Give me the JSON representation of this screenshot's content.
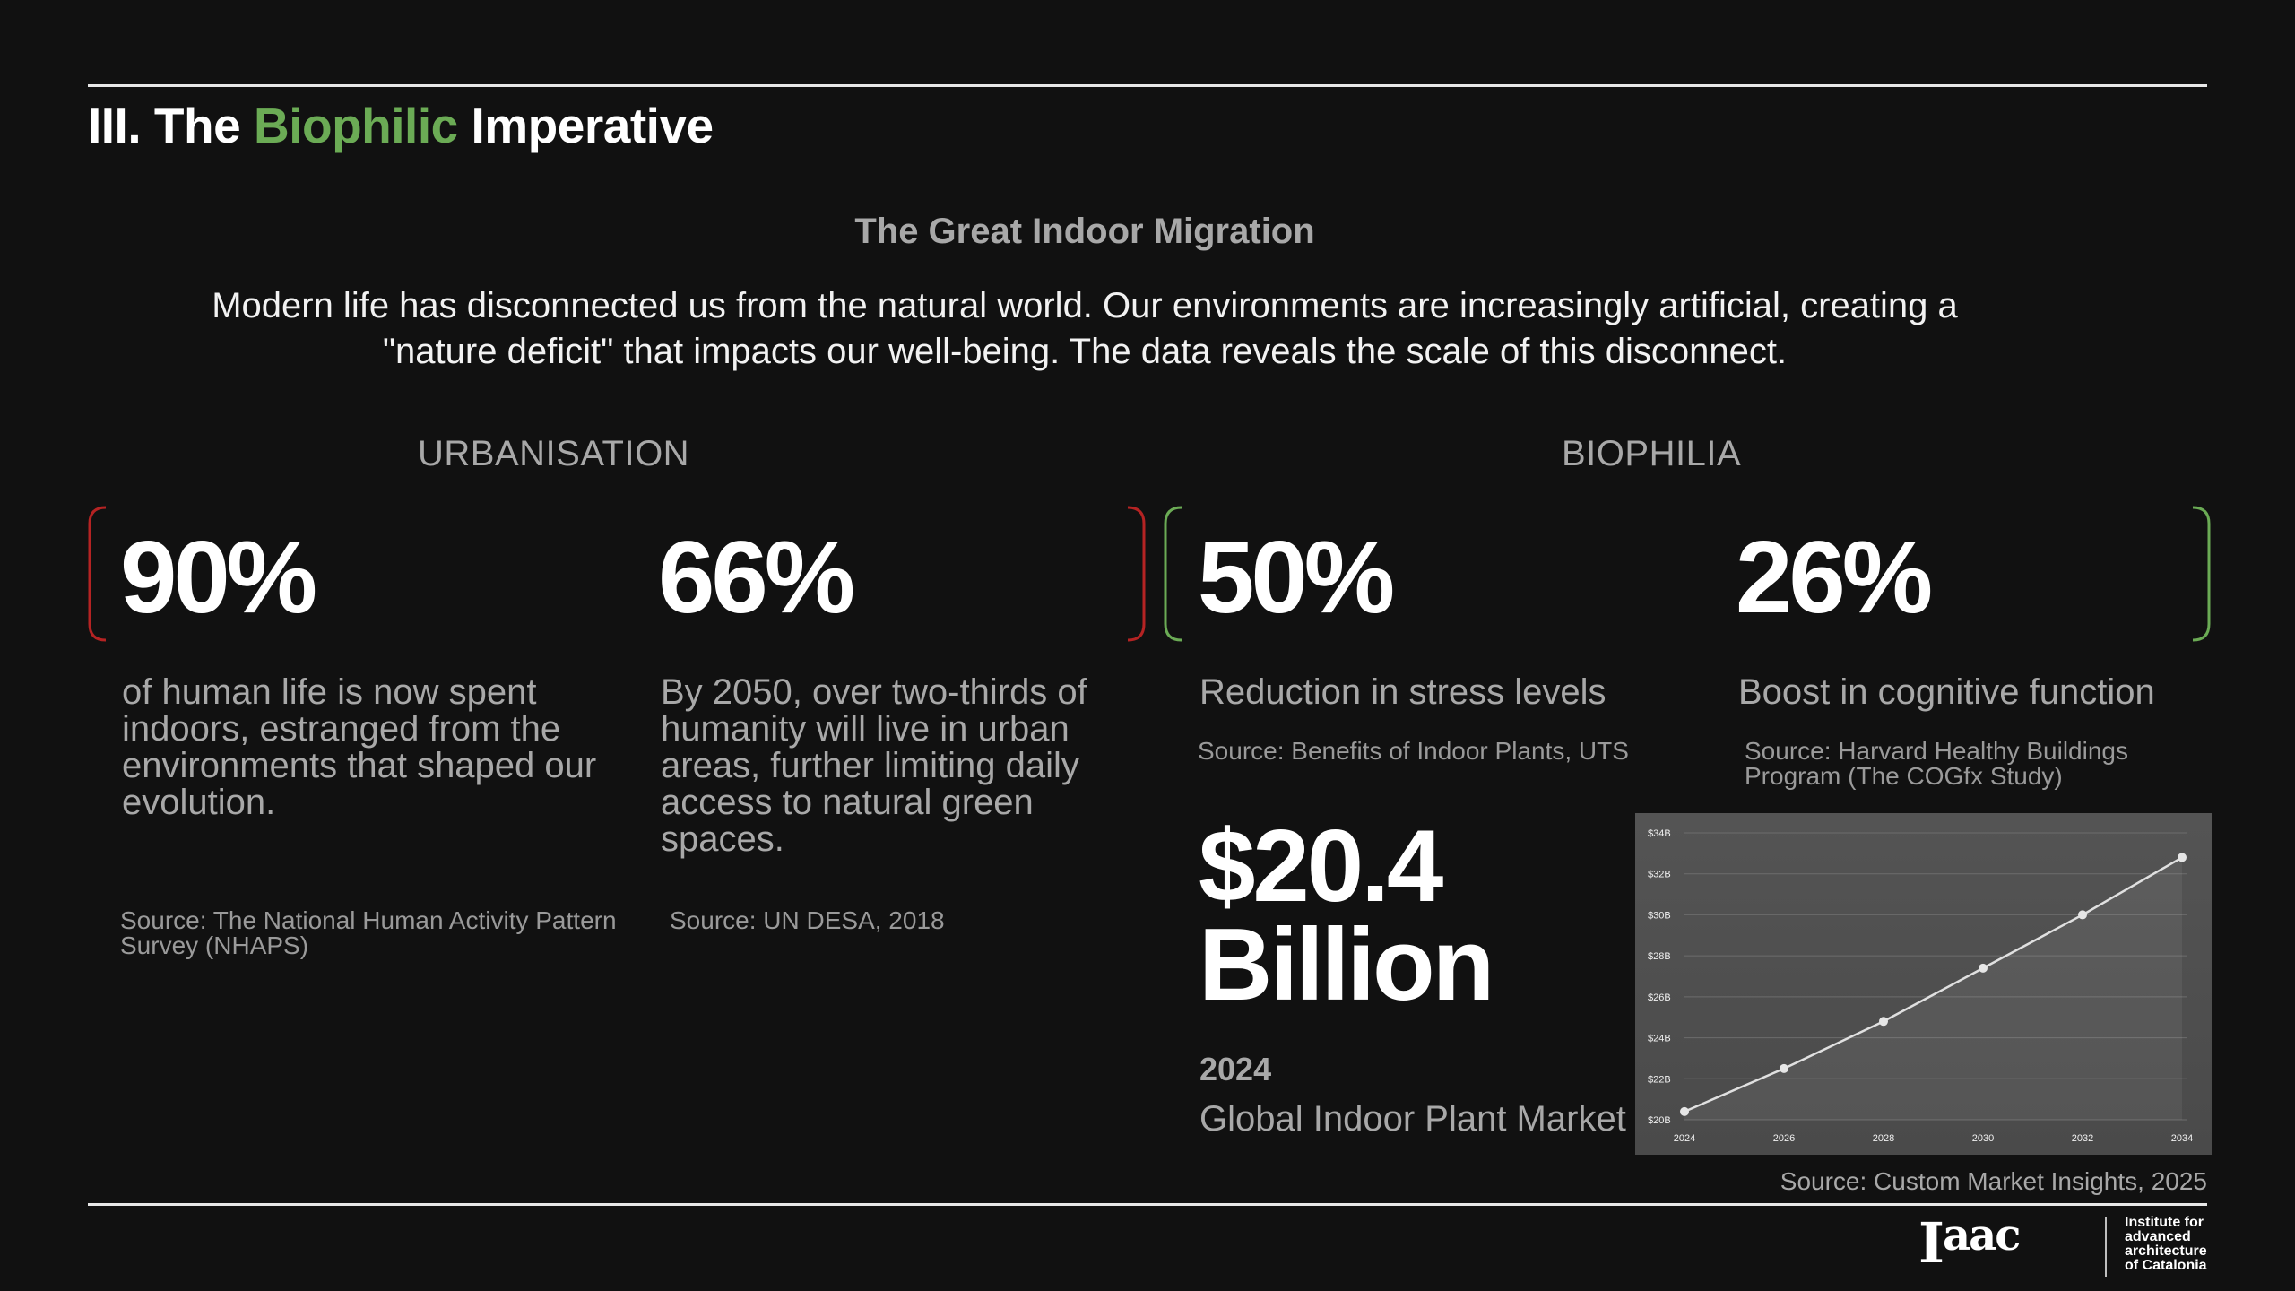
{
  "header": {
    "title_prefix": "III. The",
    "title_accent": "Biophilic",
    "title_suffix": "Imperative",
    "accent_color": "#6bab55"
  },
  "intro": {
    "subtitle": "The Great Indoor Migration",
    "text": "Modern life has disconnected us from the natural world. Our environments are increasingly artificial, creating a \"nature deficit\" that impacts our well-being. The data reveals the scale of this disconnect."
  },
  "sections": {
    "urbanisation": {
      "label": "URBANISATION",
      "bracket_color": "#b52323"
    },
    "biophilia": {
      "label": "BIOPHILIA",
      "bracket_color": "#6bab55"
    }
  },
  "stats": [
    {
      "value": "90%",
      "description": "of human life is now spent indoors, estranged from the environments that shaped our evolution.",
      "source": "Source: The National Human Activity Pattern Survey (NHAPS)"
    },
    {
      "value": "66%",
      "description": "By 2050, over two-thirds of humanity will live in urban areas, further limiting daily access to natural green spaces.",
      "source": "Source: UN DESA, 2018"
    },
    {
      "value": "50%",
      "description": "Reduction in stress levels",
      "source": "Source: Benefits of Indoor Plants, UTS"
    },
    {
      "value": "26%",
      "description": "Boost in cognitive function",
      "source": "Source: Harvard Healthy Buildings Program (The COGfx Study)"
    }
  ],
  "market": {
    "value_line1": "$20.4",
    "value_line2": "Billion",
    "year": "2024",
    "description": "Global Indoor Plant Market Growth",
    "source": "Source: Custom Market Insights, 2025"
  },
  "chart_data": {
    "type": "line",
    "x": [
      2024,
      2026,
      2028,
      2030,
      2032,
      2034
    ],
    "series": [
      {
        "values": [
          20.4,
          22.5,
          24.8,
          27.4,
          30.0,
          32.8
        ]
      }
    ],
    "x_ticks": [
      "2024",
      "2026",
      "2028",
      "2030",
      "2032",
      "2034"
    ],
    "y_ticks": [
      "$20B",
      "$22B",
      "$24B",
      "$26B",
      "$28B",
      "$30B",
      "$32B",
      "$34B"
    ],
    "ylim": [
      20,
      34
    ],
    "xlim": [
      2024,
      2034
    ],
    "grid": true,
    "title": "",
    "xlabel": "",
    "ylabel": ""
  },
  "logo": {
    "line1": "Institute for",
    "line2": "advanced",
    "line3": "architecture",
    "line4": "of Catalonia"
  }
}
